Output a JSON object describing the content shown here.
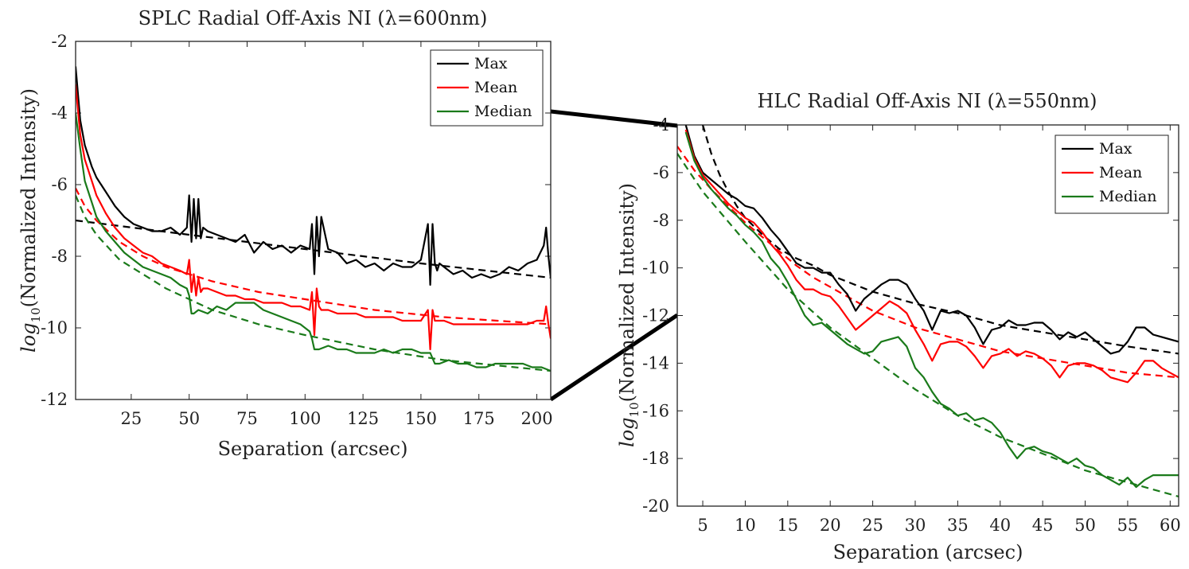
{
  "chart_data": [
    {
      "id": "splc",
      "type": "line",
      "title": "SPLC Radial Off-Axis NI (λ=600nm)",
      "xlabel": "Separation (arcsec)",
      "ylabel_prefix": "log",
      "ylabel_sub": "10",
      "ylabel_suffix": "(Normalized Intensity)",
      "xlim": [
        1,
        206
      ],
      "ylim": [
        -12,
        -2
      ],
      "xticks": [
        25,
        50,
        75,
        100,
        125,
        150,
        175,
        200
      ],
      "yticks": [
        -2,
        -4,
        -6,
        -8,
        -10,
        -12
      ],
      "legend": "top-right",
      "series": [
        {
          "name": "Max",
          "color": "#000000",
          "x": [
            1,
            3,
            5,
            8,
            10,
            14,
            18,
            22,
            26,
            30,
            34,
            38,
            42,
            46,
            49,
            50,
            51,
            52,
            53,
            54,
            55,
            56,
            58,
            62,
            66,
            70,
            74,
            78,
            82,
            86,
            90,
            94,
            98,
            102,
            103,
            104,
            105,
            106,
            107,
            110,
            114,
            118,
            122,
            126,
            130,
            134,
            138,
            142,
            146,
            150,
            153,
            154,
            155,
            156,
            157,
            158,
            160,
            164,
            168,
            172,
            176,
            180,
            184,
            188,
            192,
            196,
            200,
            203,
            204,
            205,
            206
          ],
          "y": [
            -2.7,
            -4.2,
            -4.9,
            -5.5,
            -5.8,
            -6.2,
            -6.6,
            -6.9,
            -7.1,
            -7.2,
            -7.3,
            -7.3,
            -7.2,
            -7.4,
            -7.2,
            -6.3,
            -7.6,
            -6.4,
            -7.5,
            -6.4,
            -7.5,
            -7.2,
            -7.3,
            -7.4,
            -7.5,
            -7.6,
            -7.4,
            -7.9,
            -7.6,
            -7.8,
            -7.7,
            -7.9,
            -7.7,
            -7.8,
            -7.1,
            -8.5,
            -6.9,
            -8.0,
            -6.9,
            -7.8,
            -7.9,
            -8.2,
            -8.1,
            -8.3,
            -8.2,
            -8.4,
            -8.2,
            -8.3,
            -8.3,
            -8.1,
            -7.1,
            -8.8,
            -7.1,
            -8.2,
            -8.4,
            -8.2,
            -8.3,
            -8.5,
            -8.4,
            -8.6,
            -8.5,
            -8.6,
            -8.5,
            -8.3,
            -8.4,
            -8.2,
            -8.1,
            -7.7,
            -7.2,
            -8.0,
            -8.6
          ]
        },
        {
          "name": "Mean",
          "color": "#ff0000",
          "x": [
            1,
            3,
            5,
            8,
            10,
            14,
            18,
            22,
            26,
            30,
            34,
            38,
            42,
            46,
            49,
            50,
            51,
            52,
            53,
            54,
            55,
            56,
            58,
            62,
            66,
            70,
            74,
            78,
            82,
            86,
            90,
            94,
            98,
            102,
            103,
            104,
            105,
            106,
            107,
            110,
            114,
            118,
            122,
            126,
            130,
            134,
            138,
            142,
            146,
            150,
            153,
            154,
            155,
            156,
            157,
            158,
            160,
            164,
            168,
            172,
            176,
            180,
            184,
            188,
            192,
            196,
            200,
            203,
            204,
            205,
            206
          ],
          "y": [
            -3.2,
            -4.6,
            -5.3,
            -5.9,
            -6.3,
            -6.8,
            -7.2,
            -7.5,
            -7.7,
            -7.9,
            -8.0,
            -8.2,
            -8.3,
            -8.4,
            -8.5,
            -8.1,
            -9.0,
            -8.5,
            -9.1,
            -8.6,
            -9.0,
            -8.9,
            -8.9,
            -9.0,
            -9.1,
            -9.1,
            -9.2,
            -9.2,
            -9.3,
            -9.3,
            -9.3,
            -9.4,
            -9.4,
            -9.5,
            -9.0,
            -10.2,
            -8.9,
            -9.4,
            -9.5,
            -9.5,
            -9.6,
            -9.6,
            -9.6,
            -9.7,
            -9.7,
            -9.7,
            -9.7,
            -9.8,
            -9.8,
            -9.8,
            -9.5,
            -10.6,
            -9.5,
            -9.8,
            -9.8,
            -9.8,
            -9.8,
            -9.9,
            -9.9,
            -9.9,
            -9.9,
            -9.9,
            -9.9,
            -9.9,
            -9.9,
            -9.9,
            -9.8,
            -9.8,
            -9.4,
            -9.9,
            -10.3
          ]
        },
        {
          "name": "Median",
          "color": "#1a7a1a",
          "x": [
            1,
            3,
            5,
            8,
            10,
            14,
            18,
            22,
            26,
            30,
            34,
            38,
            42,
            46,
            49,
            50,
            51,
            52,
            54,
            58,
            62,
            66,
            70,
            74,
            78,
            82,
            86,
            90,
            94,
            98,
            102,
            103,
            104,
            106,
            110,
            114,
            118,
            122,
            126,
            130,
            134,
            138,
            142,
            146,
            150,
            154,
            156,
            158,
            162,
            166,
            170,
            174,
            178,
            182,
            186,
            190,
            194,
            198,
            202,
            206
          ],
          "y": [
            -4.0,
            -5.0,
            -5.9,
            -6.5,
            -6.9,
            -7.3,
            -7.6,
            -7.9,
            -8.1,
            -8.3,
            -8.4,
            -8.5,
            -8.6,
            -8.8,
            -8.9,
            -9.1,
            -9.6,
            -9.6,
            -9.5,
            -9.6,
            -9.4,
            -9.5,
            -9.3,
            -9.3,
            -9.3,
            -9.5,
            -9.6,
            -9.7,
            -9.8,
            -9.9,
            -10.1,
            -10.3,
            -10.6,
            -10.6,
            -10.5,
            -10.6,
            -10.6,
            -10.7,
            -10.7,
            -10.7,
            -10.6,
            -10.7,
            -10.6,
            -10.6,
            -10.7,
            -10.7,
            -11.0,
            -11.0,
            -10.9,
            -11.0,
            -11.0,
            -11.1,
            -11.1,
            -11.0,
            -11.0,
            -11.0,
            -11.0,
            -11.1,
            -11.1,
            -11.2
          ]
        }
      ],
      "fits": [
        {
          "color": "#000000",
          "x": [
            1,
            50,
            100,
            150,
            206
          ],
          "y": [
            -7.0,
            -7.4,
            -7.8,
            -8.2,
            -8.6
          ]
        },
        {
          "color": "#ff0000",
          "x": [
            1,
            5,
            10,
            20,
            30,
            40,
            60,
            80,
            100,
            130,
            160,
            206
          ],
          "y": [
            -6.1,
            -6.6,
            -7.0,
            -7.6,
            -8.0,
            -8.3,
            -8.7,
            -9.0,
            -9.2,
            -9.5,
            -9.7,
            -9.9
          ]
        },
        {
          "color": "#1a7a1a",
          "x": [
            1,
            5,
            10,
            20,
            30,
            40,
            60,
            80,
            100,
            130,
            160,
            206
          ],
          "y": [
            -6.3,
            -6.9,
            -7.4,
            -8.1,
            -8.5,
            -8.9,
            -9.5,
            -9.9,
            -10.2,
            -10.6,
            -10.9,
            -11.2
          ]
        }
      ]
    },
    {
      "id": "hlc",
      "type": "line",
      "title": "HLC Radial Off-Axis NI (λ=550nm)",
      "xlabel": "Separation (arcsec)",
      "ylabel_prefix": "log",
      "ylabel_sub": "10",
      "ylabel_suffix": "(Normalized Intensity)",
      "xlim": [
        2,
        61
      ],
      "ylim": [
        -20,
        -4
      ],
      "xticks": [
        5,
        10,
        15,
        20,
        25,
        30,
        35,
        40,
        45,
        50,
        55,
        60
      ],
      "yticks": [
        -4,
        -6,
        -8,
        -10,
        -12,
        -14,
        -16,
        -18,
        -20
      ],
      "legend": "top-right",
      "series": [
        {
          "name": "Max",
          "color": "#000000",
          "x": [
            3,
            4,
            5,
            6,
            7,
            8,
            9,
            10,
            11,
            12,
            13,
            14,
            15,
            16,
            17,
            18,
            19,
            20,
            21,
            22,
            23,
            24,
            25,
            26,
            27,
            28,
            29,
            30,
            31,
            32,
            33,
            34,
            35,
            36,
            37,
            38,
            39,
            40,
            41,
            42,
            43,
            44,
            45,
            46,
            47,
            48,
            49,
            50,
            51,
            52,
            53,
            54,
            55,
            56,
            57,
            58,
            59,
            60,
            61
          ],
          "y": [
            -4.0,
            -5.3,
            -6.0,
            -6.3,
            -6.6,
            -6.9,
            -7.1,
            -7.4,
            -7.5,
            -7.9,
            -8.4,
            -8.8,
            -9.3,
            -9.8,
            -10.0,
            -10.0,
            -10.2,
            -10.2,
            -10.7,
            -11.1,
            -11.8,
            -11.3,
            -11.0,
            -10.7,
            -10.5,
            -10.5,
            -10.7,
            -11.3,
            -11.8,
            -12.6,
            -11.8,
            -11.9,
            -11.8,
            -12.0,
            -12.5,
            -13.2,
            -12.6,
            -12.5,
            -12.2,
            -12.4,
            -12.4,
            -12.3,
            -12.3,
            -12.6,
            -13.0,
            -12.7,
            -12.9,
            -12.7,
            -13.0,
            -13.3,
            -13.6,
            -13.5,
            -13.1,
            -12.5,
            -12.5,
            -12.8,
            -12.9,
            -13.0,
            -13.1
          ]
        },
        {
          "name": "Mean",
          "color": "#ff0000",
          "x": [
            3,
            4,
            5,
            6,
            7,
            8,
            9,
            10,
            11,
            12,
            13,
            14,
            15,
            16,
            17,
            18,
            19,
            20,
            21,
            22,
            23,
            24,
            25,
            26,
            27,
            28,
            29,
            30,
            31,
            32,
            33,
            34,
            35,
            36,
            37,
            38,
            39,
            40,
            41,
            42,
            43,
            44,
            45,
            46,
            47,
            48,
            49,
            50,
            51,
            52,
            53,
            54,
            55,
            56,
            57,
            58,
            59,
            60,
            61
          ],
          "y": [
            -4.2,
            -5.4,
            -6.1,
            -6.5,
            -6.9,
            -7.3,
            -7.6,
            -7.9,
            -8.1,
            -8.5,
            -9.0,
            -9.4,
            -9.9,
            -10.5,
            -10.9,
            -10.9,
            -11.1,
            -11.2,
            -11.6,
            -12.1,
            -12.6,
            -12.3,
            -12.0,
            -11.7,
            -11.4,
            -11.6,
            -11.9,
            -12.6,
            -13.2,
            -13.9,
            -13.2,
            -13.1,
            -13.1,
            -13.3,
            -13.7,
            -14.2,
            -13.7,
            -13.6,
            -13.4,
            -13.7,
            -13.5,
            -13.6,
            -13.8,
            -14.1,
            -14.6,
            -14.1,
            -14.0,
            -14.0,
            -14.1,
            -14.3,
            -14.6,
            -14.7,
            -14.8,
            -14.4,
            -13.9,
            -13.9,
            -14.2,
            -14.4,
            -14.6
          ]
        },
        {
          "name": "Median",
          "color": "#1a7a1a",
          "x": [
            3,
            4,
            5,
            6,
            7,
            8,
            9,
            10,
            11,
            12,
            13,
            14,
            15,
            16,
            17,
            18,
            19,
            20,
            21,
            22,
            23,
            24,
            25,
            26,
            27,
            28,
            29,
            30,
            31,
            32,
            33,
            34,
            35,
            36,
            37,
            38,
            39,
            40,
            41,
            42,
            43,
            44,
            45,
            46,
            47,
            48,
            49,
            50,
            51,
            52,
            53,
            54,
            55,
            56,
            57,
            58,
            59,
            60,
            61
          ],
          "y": [
            -4.3,
            -5.5,
            -6.2,
            -6.7,
            -7.1,
            -7.5,
            -7.8,
            -8.2,
            -8.5,
            -8.9,
            -9.6,
            -10.0,
            -10.6,
            -11.3,
            -12.0,
            -12.4,
            -12.3,
            -12.6,
            -12.9,
            -13.2,
            -13.4,
            -13.6,
            -13.5,
            -13.1,
            -13.0,
            -12.9,
            -13.3,
            -14.2,
            -14.6,
            -15.2,
            -15.7,
            -15.9,
            -16.2,
            -16.1,
            -16.4,
            -16.3,
            -16.5,
            -16.9,
            -17.5,
            -18.0,
            -17.6,
            -17.5,
            -17.7,
            -17.8,
            -18.0,
            -18.2,
            -18.0,
            -18.3,
            -18.4,
            -18.7,
            -18.9,
            -19.1,
            -18.8,
            -19.2,
            -18.9,
            -18.7,
            -18.7,
            -18.7,
            -18.7
          ]
        }
      ],
      "fits": [
        {
          "color": "#000000",
          "x": [
            5,
            6,
            7,
            8,
            9,
            10,
            12,
            14,
            16,
            18,
            20,
            25,
            30,
            35,
            40,
            45,
            50,
            55,
            61
          ],
          "y": [
            -4.0,
            -5.2,
            -6.1,
            -6.8,
            -7.4,
            -7.9,
            -8.6,
            -9.2,
            -9.6,
            -9.9,
            -10.3,
            -11.0,
            -11.5,
            -11.9,
            -12.4,
            -12.7,
            -13.0,
            -13.3,
            -13.6
          ]
        },
        {
          "color": "#ff0000",
          "x": [
            2,
            4,
            6,
            8,
            10,
            12,
            14,
            16,
            18,
            20,
            25,
            30,
            35,
            40,
            45,
            50,
            55,
            61
          ],
          "y": [
            -4.9,
            -5.9,
            -6.7,
            -7.4,
            -8.1,
            -8.7,
            -9.3,
            -9.9,
            -10.4,
            -10.8,
            -11.8,
            -12.5,
            -13.0,
            -13.5,
            -13.8,
            -14.1,
            -14.4,
            -14.6
          ]
        },
        {
          "color": "#1a7a1a",
          "x": [
            2,
            5,
            10,
            15,
            20,
            25,
            30,
            35,
            40,
            45,
            50,
            55,
            61
          ],
          "y": [
            -5.2,
            -6.8,
            -8.9,
            -10.9,
            -12.5,
            -13.8,
            -15.1,
            -16.2,
            -17.1,
            -17.8,
            -18.5,
            -19.0,
            -19.6
          ]
        }
      ]
    }
  ]
}
